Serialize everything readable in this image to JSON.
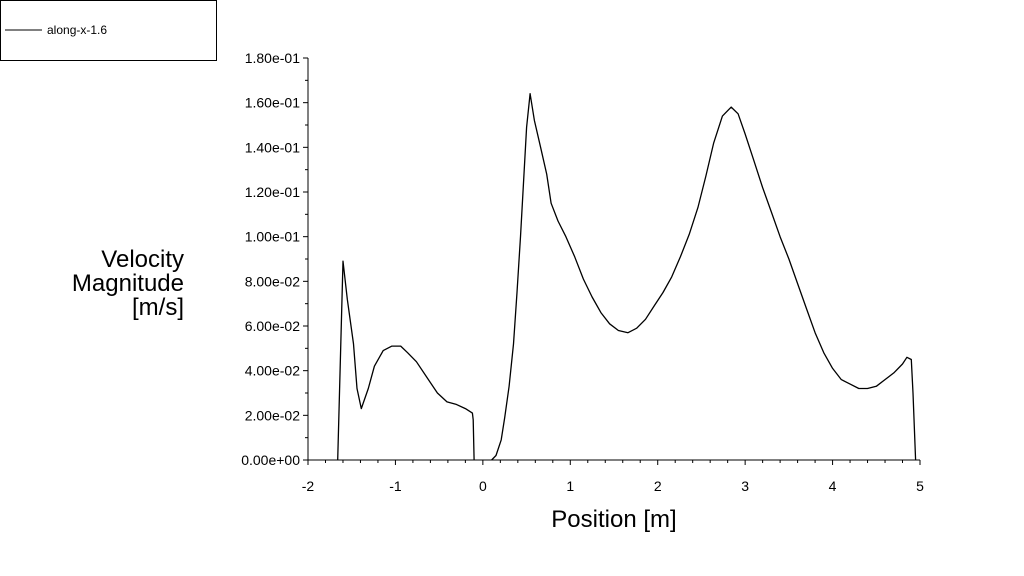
{
  "chart_data": {
    "type": "line",
    "title": "",
    "xlabel": "Position [m]",
    "ylabel_lines": [
      "Velocity",
      "Magnitude",
      "[m/s]"
    ],
    "xlim": [
      -2,
      5
    ],
    "ylim": [
      0,
      0.18
    ],
    "x_ticks": [
      -2,
      -1,
      0,
      1,
      2,
      3,
      4,
      5
    ],
    "x_tick_labels": [
      "-2",
      "-1",
      "0",
      "1",
      "2",
      "3",
      "4",
      "5"
    ],
    "y_ticks": [
      0,
      0.02,
      0.04,
      0.06,
      0.08,
      0.1,
      0.12,
      0.14,
      0.16,
      0.18
    ],
    "y_tick_labels": [
      "0.00e+00",
      "2.00e-02",
      "4.00e-02",
      "6.00e-02",
      "8.00e-02",
      "1.00e-01",
      "1.20e-01",
      "1.40e-01",
      "1.60e-01",
      "1.80e-01"
    ],
    "grid": false,
    "legend_position": "top-left",
    "line_color": "#000000",
    "series": [
      {
        "name": "along-x-1.6",
        "segments": [
          [
            [
              -1.66,
              0.0
            ],
            [
              -1.6,
              0.089
            ],
            [
              -1.55,
              0.072
            ],
            [
              -1.48,
              0.052
            ],
            [
              -1.44,
              0.032
            ],
            [
              -1.39,
              0.023
            ],
            [
              -1.31,
              0.032
            ],
            [
              -1.24,
              0.042
            ],
            [
              -1.14,
              0.049
            ],
            [
              -1.04,
              0.051
            ],
            [
              -0.94,
              0.051
            ],
            [
              -0.86,
              0.048
            ],
            [
              -0.76,
              0.044
            ],
            [
              -0.64,
              0.037
            ],
            [
              -0.52,
              0.03
            ],
            [
              -0.41,
              0.026
            ],
            [
              -0.31,
              0.025
            ],
            [
              -0.2,
              0.023
            ],
            [
              -0.12,
              0.021
            ],
            [
              -0.11,
              0.018
            ],
            [
              -0.1,
              0.0
            ]
          ],
          [
            [
              0.1,
              0.0
            ],
            [
              0.15,
              0.002
            ],
            [
              0.21,
              0.009
            ],
            [
              0.25,
              0.019
            ],
            [
              0.3,
              0.033
            ],
            [
              0.35,
              0.052
            ],
            [
              0.39,
              0.075
            ],
            [
              0.43,
              0.1
            ],
            [
              0.5,
              0.149
            ],
            [
              0.54,
              0.164
            ],
            [
              0.59,
              0.152
            ],
            [
              0.66,
              0.14
            ],
            [
              0.73,
              0.128
            ],
            [
              0.78,
              0.115
            ],
            [
              0.86,
              0.107
            ],
            [
              0.95,
              0.1
            ],
            [
              1.05,
              0.091
            ],
            [
              1.15,
              0.081
            ],
            [
              1.25,
              0.073
            ],
            [
              1.35,
              0.066
            ],
            [
              1.45,
              0.061
            ],
            [
              1.55,
              0.058
            ],
            [
              1.66,
              0.057
            ],
            [
              1.76,
              0.059
            ],
            [
              1.86,
              0.063
            ],
            [
              1.96,
              0.069
            ],
            [
              2.06,
              0.075
            ],
            [
              2.16,
              0.082
            ],
            [
              2.26,
              0.091
            ],
            [
              2.36,
              0.101
            ],
            [
              2.46,
              0.113
            ],
            [
              2.55,
              0.127
            ],
            [
              2.64,
              0.142
            ],
            [
              2.74,
              0.154
            ],
            [
              2.84,
              0.158
            ],
            [
              2.92,
              0.155
            ],
            [
              3.0,
              0.146
            ],
            [
              3.1,
              0.134
            ],
            [
              3.2,
              0.122
            ],
            [
              3.3,
              0.111
            ],
            [
              3.4,
              0.1
            ],
            [
              3.5,
              0.09
            ],
            [
              3.6,
              0.079
            ],
            [
              3.7,
              0.068
            ],
            [
              3.8,
              0.057
            ],
            [
              3.9,
              0.048
            ],
            [
              4.0,
              0.041
            ],
            [
              4.1,
              0.036
            ],
            [
              4.2,
              0.034
            ],
            [
              4.3,
              0.032
            ],
            [
              4.4,
              0.032
            ],
            [
              4.5,
              0.033
            ],
            [
              4.6,
              0.036
            ],
            [
              4.7,
              0.039
            ],
            [
              4.8,
              0.043
            ],
            [
              4.85,
              0.046
            ],
            [
              4.9,
              0.045
            ],
            [
              4.92,
              0.03
            ],
            [
              4.95,
              0.0
            ]
          ]
        ]
      }
    ]
  }
}
